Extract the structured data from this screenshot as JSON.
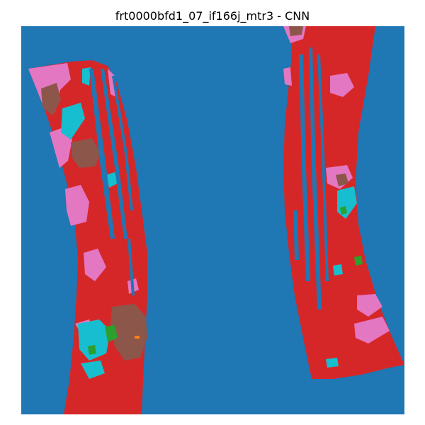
{
  "figure": {
    "title": "frt0000bfd1_07_if166j_mtr3 - CNN"
  },
  "class_colors": {
    "background": "#1f77b4",
    "red": "#d62728",
    "pink": "#e377c2",
    "brown": "#8c564b",
    "cyan": "#17becf",
    "green": "#2ca02c",
    "orange": "#ff7f0e"
  }
}
